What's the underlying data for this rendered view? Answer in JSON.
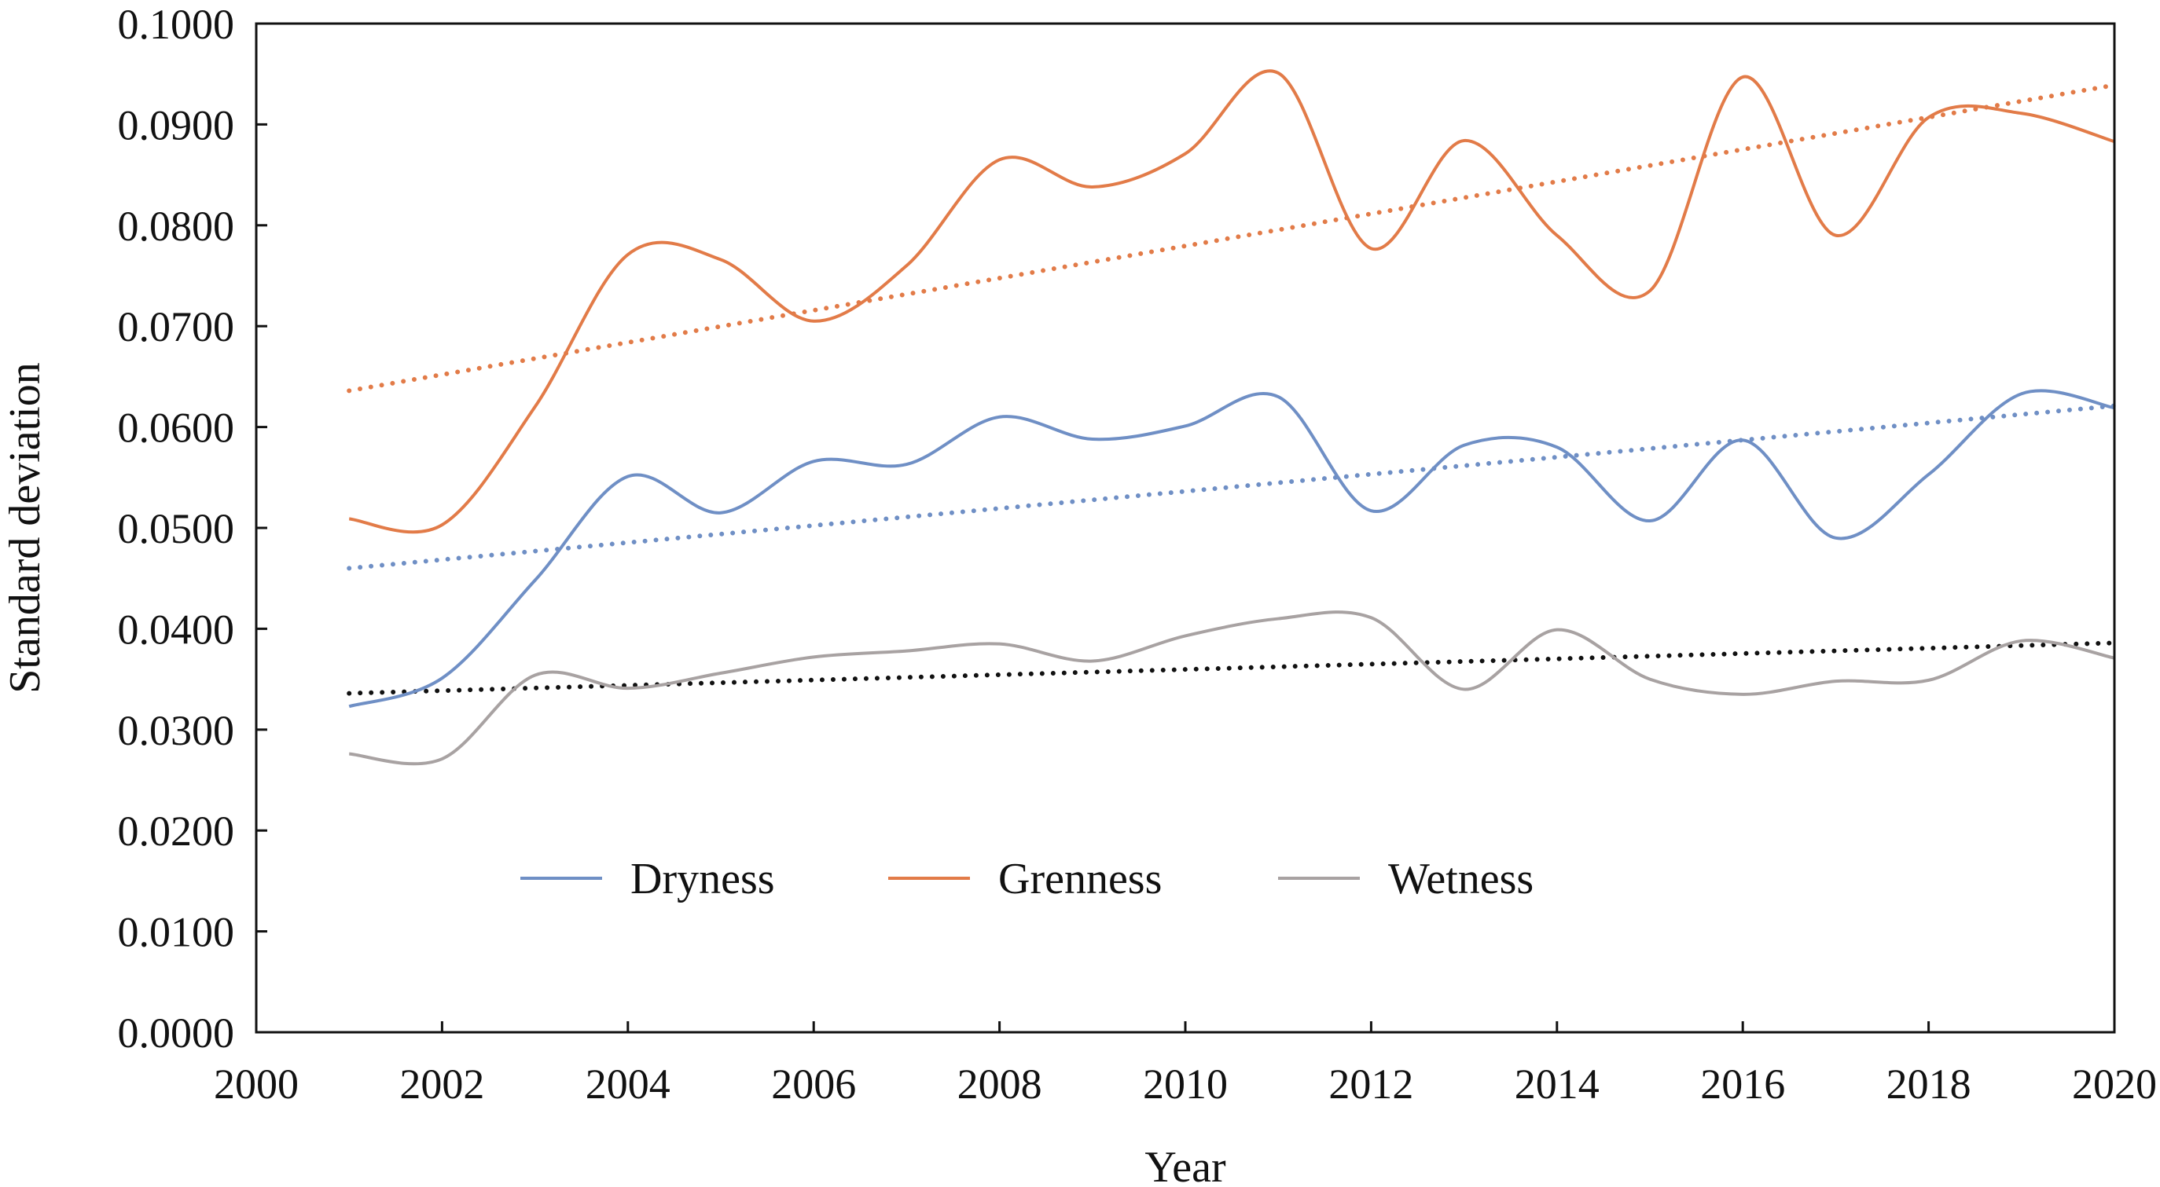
{
  "chart_data": {
    "type": "line",
    "title": "",
    "xlabel": "Year",
    "ylabel": "Standard deviation",
    "xlim": [
      2000,
      2020
    ],
    "ylim": [
      0.0,
      0.1
    ],
    "x_ticks": [
      "2000",
      "2002",
      "2004",
      "2006",
      "2008",
      "2010",
      "2012",
      "2014",
      "2016",
      "2018",
      "2020"
    ],
    "y_ticks": [
      "0.0000",
      "0.0100",
      "0.0200",
      "0.0300",
      "0.0400",
      "0.0500",
      "0.0600",
      "0.0700",
      "0.0800",
      "0.0900",
      "0.1000"
    ],
    "x": [
      2001,
      2002,
      2003,
      2004,
      2005,
      2006,
      2007,
      2008,
      2009,
      2010,
      2011,
      2012,
      2013,
      2014,
      2015,
      2016,
      2017,
      2018,
      2019,
      2020
    ],
    "grid": false,
    "legend_position": "bottom-left, inside plot",
    "series": [
      {
        "name": "Dryness",
        "color": "#6f8fc5",
        "values": [
          0.0323,
          0.0351,
          0.0448,
          0.0551,
          0.0515,
          0.0566,
          0.0563,
          0.061,
          0.0588,
          0.0601,
          0.063,
          0.0517,
          0.0582,
          0.058,
          0.0507,
          0.0587,
          0.049,
          0.0553,
          0.0633,
          0.0619
        ]
      },
      {
        "name": "Grenness",
        "color": "#e27b48",
        "values": [
          0.0509,
          0.0503,
          0.062,
          0.0771,
          0.0766,
          0.0705,
          0.076,
          0.0865,
          0.0838,
          0.0871,
          0.0951,
          0.0777,
          0.0884,
          0.079,
          0.0735,
          0.0947,
          0.079,
          0.0907,
          0.0911,
          0.0883
        ]
      },
      {
        "name": "Wetness",
        "color": "#a8a2a2",
        "values": [
          0.0276,
          0.0271,
          0.0354,
          0.0341,
          0.0356,
          0.0372,
          0.0378,
          0.0385,
          0.0368,
          0.0393,
          0.041,
          0.0411,
          0.034,
          0.0399,
          0.035,
          0.0335,
          0.0348,
          0.0349,
          0.0388,
          0.0371
        ]
      }
    ],
    "trendlines": [
      {
        "of": "Dryness",
        "style": "dotted",
        "color": "#6f8fc5",
        "x": [
          2001,
          2020
        ],
        "values": [
          0.046,
          0.0621
        ]
      },
      {
        "of": "Grenness",
        "style": "dotted",
        "color": "#e27b48",
        "x": [
          2001,
          2020
        ],
        "values": [
          0.0636,
          0.0939
        ]
      },
      {
        "of": "Wetness",
        "style": "dotted",
        "color": "#111111",
        "x": [
          2001,
          2020
        ],
        "values": [
          0.0336,
          0.0386
        ]
      }
    ]
  }
}
